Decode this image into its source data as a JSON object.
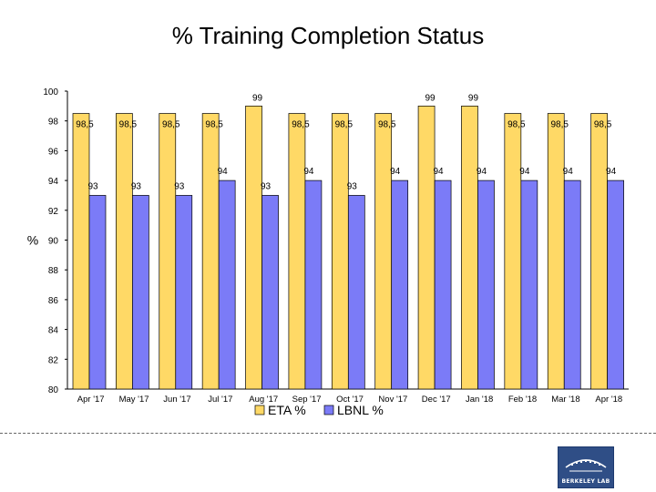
{
  "title": "% Training Completion Status",
  "chart_data": {
    "type": "bar",
    "title": "% Training Completion Status",
    "xlabel": "",
    "ylabel": "%",
    "ylim": [
      80,
      100
    ],
    "yticks": [
      80,
      82,
      84,
      86,
      88,
      90,
      92,
      94,
      96,
      98,
      100
    ],
    "categories": [
      "Apr '17",
      "May '17",
      "Jun '17",
      "Jul '17",
      "Aug '17",
      "Sep '17",
      "Oct '17",
      "Nov '17",
      "Dec '17",
      "Jan '18",
      "Feb '18",
      "Mar '18",
      "Apr '18"
    ],
    "series": [
      {
        "name": "ETA %",
        "color": "#FFD966",
        "values": [
          98.5,
          98.5,
          98.5,
          98.5,
          99,
          98.5,
          98.5,
          98.5,
          99,
          99,
          98.5,
          98.5,
          98.5
        ],
        "labels": [
          "98,5",
          "98,5",
          "98,5",
          "98,5",
          "99",
          "98,5",
          "98,5",
          "98,5",
          "99",
          "99",
          "98,5",
          "98,5",
          "98,5"
        ]
      },
      {
        "name": "LBNL %",
        "color": "#7B7BF7",
        "values": [
          93,
          93,
          93,
          94,
          93,
          94,
          93,
          94,
          94,
          94,
          94,
          94,
          94
        ],
        "labels": [
          "93",
          "93",
          "93",
          "94",
          "93",
          "94",
          "93",
          "94",
          "94",
          "94",
          "94",
          "94",
          "94"
        ]
      }
    ],
    "legend": [
      "ETA %",
      "LBNL %"
    ],
    "legend_position": "bottom"
  },
  "logo": {
    "text": "BERKELEY LAB"
  }
}
